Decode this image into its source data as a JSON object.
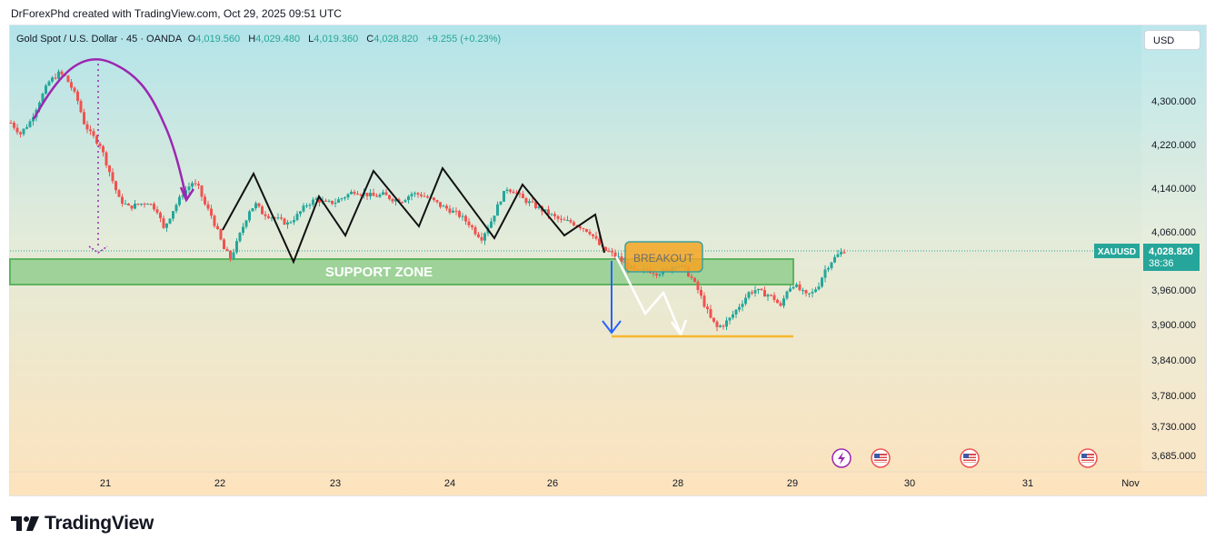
{
  "credit": "DrForexPhd created with TradingView.com, Oct 29, 2025 09:51 UTC",
  "brand": "TradingView",
  "currency_button": "USD",
  "legend": {
    "symbol_name": "Gold Spot / U.S. Dollar · 45 · OANDA",
    "o_label": "O",
    "o_value": "4,019.560",
    "h_label": "H",
    "h_value": "4,029.480",
    "l_label": "L",
    "l_value": "4,019.360",
    "c_label": "C",
    "c_value": "4,028.820",
    "change": "+9.255 (+0.23%)"
  },
  "price_tag": {
    "ticker": "XAUUSD",
    "price": "4,028.820",
    "countdown": "38:36"
  },
  "annotations": {
    "support_zone": "SUPPORT ZONE",
    "breakout": "BREAKOUT"
  },
  "colors": {
    "up": "#26a69a",
    "down": "#ef5350",
    "zone": "#7fc77f",
    "arc": "#9c27b0",
    "breakout_fill": "#f5a623",
    "target_line": "#f5b82e",
    "arrow_blue": "#2962ff",
    "zigzag": "#111111"
  },
  "event_icons": [
    "lightning-icon",
    "us-flag-icon",
    "us-flag-icon",
    "us-flag-icon"
  ],
  "chart_data": {
    "type": "candlestick",
    "y_axis_ticks": [
      4300,
      4220,
      4140,
      4060,
      3960,
      3900,
      3840,
      3780,
      3730,
      3685
    ],
    "y_tick_labels": [
      "4,300.000",
      "4,220.000",
      "4,140.000",
      "4,060.000",
      "3,960.000",
      "3,900.000",
      "3,840.000",
      "3,780.000",
      "3,730.000",
      "3,685.000"
    ],
    "x_axis_labels": [
      "21",
      "22",
      "23",
      "24",
      "26",
      "28",
      "29",
      "30",
      "31",
      "Nov"
    ],
    "last_price": 4028.82,
    "support_zone": [
      3965,
      4020
    ],
    "target_level": 3888,
    "path": [
      [
        0,
        4260
      ],
      [
        1.5,
        4240
      ],
      [
        3,
        4262
      ],
      [
        4.5,
        4300
      ],
      [
        6,
        4335
      ],
      [
        7.5,
        4350
      ],
      [
        8.5,
        4345
      ],
      [
        9.5,
        4325
      ],
      [
        10.5,
        4300
      ],
      [
        11.5,
        4260
      ],
      [
        12.5,
        4240
      ],
      [
        14,
        4220
      ],
      [
        15.5,
        4170
      ],
      [
        17,
        4120
      ],
      [
        18.5,
        4105
      ],
      [
        20,
        4110
      ],
      [
        21.5,
        4115
      ],
      [
        23,
        4100
      ],
      [
        24,
        4065
      ],
      [
        25.5,
        4100
      ],
      [
        27,
        4130
      ],
      [
        28.5,
        4150
      ],
      [
        29.5,
        4140
      ],
      [
        30.5,
        4110
      ],
      [
        31.5,
        4090
      ],
      [
        32.5,
        4060
      ],
      [
        33.5,
        4030
      ],
      [
        34.5,
        4015
      ],
      [
        35.5,
        4040
      ],
      [
        36.5,
        4070
      ],
      [
        37.5,
        4100
      ],
      [
        38.5,
        4110
      ],
      [
        39.5,
        4095
      ],
      [
        40.5,
        4090
      ],
      [
        41.5,
        4085
      ],
      [
        42.5,
        4080
      ],
      [
        43.5,
        4075
      ],
      [
        45,
        4090
      ],
      [
        46.5,
        4110
      ],
      [
        48,
        4120
      ],
      [
        49.5,
        4112
      ],
      [
        51,
        4115
      ],
      [
        52.5,
        4125
      ],
      [
        54,
        4135
      ],
      [
        55.5,
        4130
      ],
      [
        57,
        4125
      ],
      [
        58.5,
        4128
      ],
      [
        60,
        4120
      ],
      [
        61.5,
        4118
      ],
      [
        63,
        4130
      ],
      [
        64.5,
        4128
      ],
      [
        66,
        4120
      ],
      [
        67.5,
        4108
      ],
      [
        69,
        4100
      ],
      [
        70.5,
        4090
      ],
      [
        72,
        4075
      ],
      [
        73,
        4060
      ],
      [
        74,
        4050
      ],
      [
        75.5,
        4080
      ],
      [
        77,
        4120
      ],
      [
        78,
        4140
      ],
      [
        79,
        4135
      ],
      [
        80.5,
        4120
      ],
      [
        82,
        4110
      ],
      [
        83.5,
        4100
      ],
      [
        85,
        4090
      ],
      [
        86.5,
        4080
      ],
      [
        88,
        4078
      ],
      [
        89.5,
        4070
      ],
      [
        91,
        4060
      ],
      [
        92,
        4045
      ],
      [
        93,
        4030
      ],
      [
        94,
        4025
      ],
      [
        95.5,
        4015
      ],
      [
        97,
        4000
      ],
      [
        98.5,
        3990
      ],
      [
        100,
        3995
      ],
      [
        101.5,
        3990
      ],
      [
        103,
        3992
      ],
      [
        104.5,
        4005
      ],
      [
        106,
        3995
      ],
      [
        107,
        3980
      ],
      [
        108,
        3960
      ],
      [
        109,
        3935
      ],
      [
        110,
        3910
      ],
      [
        111,
        3895
      ],
      [
        112,
        3900
      ],
      [
        113,
        3910
      ],
      [
        114,
        3925
      ],
      [
        115,
        3940
      ],
      [
        116,
        3955
      ],
      [
        117,
        3960
      ],
      [
        118,
        3955
      ],
      [
        119,
        3952
      ],
      [
        120,
        3945
      ],
      [
        121,
        3930
      ],
      [
        122,
        3960
      ],
      [
        123,
        3970
      ],
      [
        124,
        3960
      ],
      [
        125,
        3950
      ],
      [
        126,
        3955
      ],
      [
        127,
        3970
      ],
      [
        128,
        3995
      ],
      [
        129,
        4010
      ],
      [
        130,
        4020
      ],
      [
        131,
        4028
      ]
    ]
  }
}
